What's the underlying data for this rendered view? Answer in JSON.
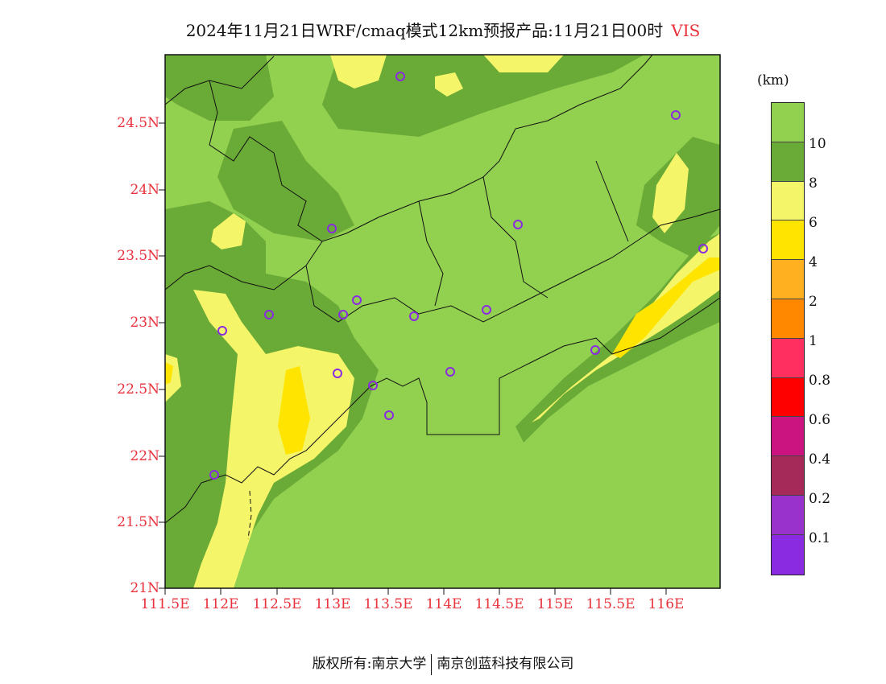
{
  "title": {
    "text": "2024年11月21日WRF/cmaq模式12km预报产品:11月21日00时",
    "variable": "VIS"
  },
  "axes": {
    "lat_labels": [
      "24.5N",
      "24N",
      "23.5N",
      "23N",
      "22.5N",
      "22N",
      "21.5N",
      "21N"
    ],
    "lon_labels": [
      "111.5E",
      "112E",
      "112.5E",
      "113E",
      "113.5E",
      "114E",
      "114.5E",
      "115E",
      "115.5E",
      "116E"
    ]
  },
  "colorbar": {
    "unit": "(km)",
    "labels": [
      "10",
      "8",
      "6",
      "4",
      "2",
      "1",
      "0.8",
      "0.6",
      "0.4",
      "0.2",
      "0.1"
    ],
    "colors": [
      "#92d050",
      "#6aaa36",
      "#f5f56a",
      "#ffe400",
      "#ffb020",
      "#ff8800",
      "#ff3060",
      "#ff0000",
      "#cc1480",
      "#a52a5a",
      "#9932cc",
      "#8a2be2"
    ]
  },
  "footer": {
    "left": "版权所有:南京大学",
    "right": "南京创蓝科技有限公司"
  }
}
